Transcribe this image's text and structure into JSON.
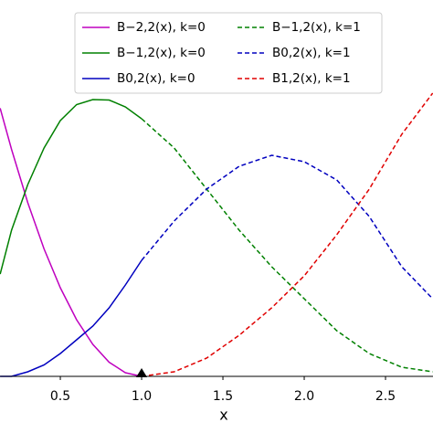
{
  "chart_data": {
    "type": "line",
    "xlabel": "x",
    "x": [
      0.13,
      0.2,
      0.3,
      0.4,
      0.5,
      0.6,
      0.7,
      0.8,
      0.9,
      1.0,
      1.2,
      1.4,
      1.6,
      1.8,
      2.0,
      2.2,
      2.4,
      2.6,
      2.79
    ],
    "series": [
      {
        "name": "B−2,2(x), k=0",
        "color": "#bf00bf",
        "linestyle": "solid",
        "values": [
          0.587,
          0.497,
          0.38,
          0.279,
          0.194,
          0.124,
          0.07,
          0.031,
          0.008,
          0,
          null,
          null,
          null,
          null,
          null,
          null,
          null,
          null,
          null
        ]
      },
      {
        "name": "B−1,2(x), k=0",
        "color": "#008000",
        "linestyle": "solid",
        "values": [
          0.224,
          0.32,
          0.42,
          0.5,
          0.56,
          0.595,
          0.606,
          0.605,
          0.59,
          0.564,
          null,
          null,
          null,
          null,
          null,
          null,
          null,
          null,
          null
        ]
      },
      {
        "name": "B0,2(x), k=0",
        "color": "#0000bf",
        "linestyle": "solid",
        "values": [
          0,
          0,
          0.01,
          0.025,
          0.05,
          0.08,
          0.11,
          0.15,
          0.2,
          0.254,
          null,
          null,
          null,
          null,
          null,
          null,
          null,
          null,
          null
        ]
      },
      {
        "name": "B−1,2(x), k=1",
        "color": "#008000",
        "linestyle": "dashed",
        "values": [
          null,
          null,
          null,
          null,
          null,
          null,
          null,
          null,
          null,
          0.564,
          0.5,
          0.41,
          0.32,
          0.24,
          0.17,
          0.1,
          0.05,
          0.02,
          0.01
        ]
      },
      {
        "name": "B0,2(x), k=1",
        "color": "#0000bf",
        "linestyle": "dashed",
        "values": [
          null,
          null,
          null,
          null,
          null,
          null,
          null,
          null,
          null,
          0.254,
          0.34,
          0.41,
          0.46,
          0.484,
          0.47,
          0.43,
          0.35,
          0.24,
          0.17
        ]
      },
      {
        "name": "B1,2(x), k=1",
        "color": "#e00000",
        "linestyle": "dashed",
        "values": [
          null,
          null,
          null,
          null,
          null,
          null,
          null,
          null,
          null,
          0,
          0.01,
          0.04,
          0.09,
          0.15,
          0.22,
          0.31,
          0.41,
          0.53,
          0.62
        ]
      }
    ],
    "marker": {
      "x": 1.0,
      "y": 0
    },
    "xlim": [
      0.129,
      2.792
    ],
    "ylim": [
      0,
      0.8
    ],
    "xticks": [
      0.5,
      {
        "value": 1.0,
        "label": "1.0"
      },
      1.5,
      {
        "value": 2.0,
        "label": "2.0"
      },
      2.5
    ],
    "legend": "upper center"
  }
}
